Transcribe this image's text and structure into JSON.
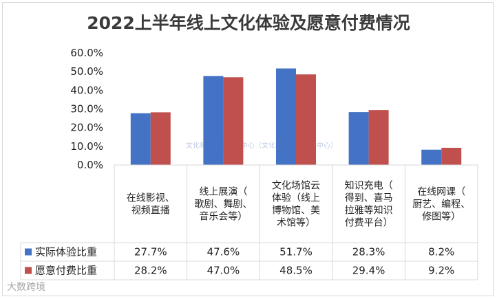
{
  "title": "2022上半年线上文化体验及愿意付费情况",
  "watermark": "文化和旅游部数据中心（文化和旅游部信息中心）",
  "footer_logo": "大数跨境",
  "colors": {
    "series1": "#4472C4",
    "series2": "#C0504D",
    "grid": "#d9d9d9"
  },
  "chart_data": {
    "type": "bar",
    "categories": [
      [
        "在线影视、",
        "视频直播"
      ],
      [
        "线上展演（",
        "歌剧、舞剧、",
        "音乐会等）"
      ],
      [
        "文化场馆云",
        "体验（线上",
        "博物馆、美",
        "术馆等）"
      ],
      [
        "知识充电（",
        "得到、喜马",
        "拉雅等知识",
        "付费平台）"
      ],
      [
        "在线网课（",
        "厨艺、编程、",
        "修图等）"
      ]
    ],
    "series": [
      {
        "name": "实际体验比重",
        "values": [
          27.7,
          47.6,
          51.7,
          28.3,
          8.2
        ],
        "labels": [
          "27.7%",
          "47.6%",
          "51.7%",
          "28.3%",
          "8.2%"
        ]
      },
      {
        "name": "愿意付费比重",
        "values": [
          28.2,
          47.0,
          48.5,
          29.4,
          9.2
        ],
        "labels": [
          "28.2%",
          "47.0%",
          "48.5%",
          "29.4%",
          "9.2%"
        ]
      }
    ],
    "ylim": [
      0,
      60
    ],
    "yticks": [
      "0.0%",
      "10.0%",
      "20.0%",
      "30.0%",
      "40.0%",
      "50.0%",
      "60.0%"
    ],
    "data_table": true,
    "grid": true
  }
}
